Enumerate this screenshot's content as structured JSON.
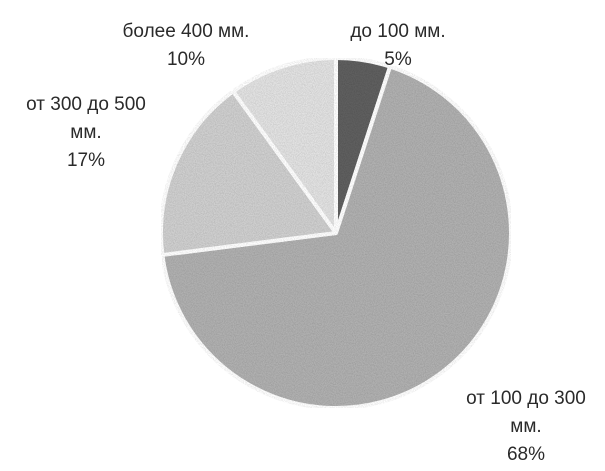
{
  "chart_data": {
    "type": "pie",
    "title": "",
    "slices": [
      {
        "name": "до 100 мм.",
        "value": 5,
        "value_label": "5%",
        "color": "#5f5f5f"
      },
      {
        "name": "от 100 до 300 мм.",
        "value": 68,
        "value_label": "68%",
        "color": "#b0b0b0"
      },
      {
        "name": "от 300 до 500 мм.",
        "value": 17,
        "value_label": "17%",
        "color": "#cfcfcf"
      },
      {
        "name": "более 400 мм.",
        "value": 10,
        "value_label": "10%",
        "color": "#e2e2e2"
      }
    ],
    "data_labels": [
      {
        "slice": 0,
        "lines": [
          "до 100 мм.",
          "5%"
        ]
      },
      {
        "slice": 1,
        "lines": [
          "от 100 до 300",
          "мм.",
          "68%"
        ]
      },
      {
        "slice": 2,
        "lines": [
          "от 300 до 500",
          "мм.",
          "17%"
        ]
      },
      {
        "slice": 3,
        "lines": [
          "более 400 мм.",
          "10%"
        ]
      }
    ],
    "legend": "none",
    "start_angle": "12 o'clock",
    "direction": "clockwise",
    "slice_border_color": "#ffffff"
  }
}
